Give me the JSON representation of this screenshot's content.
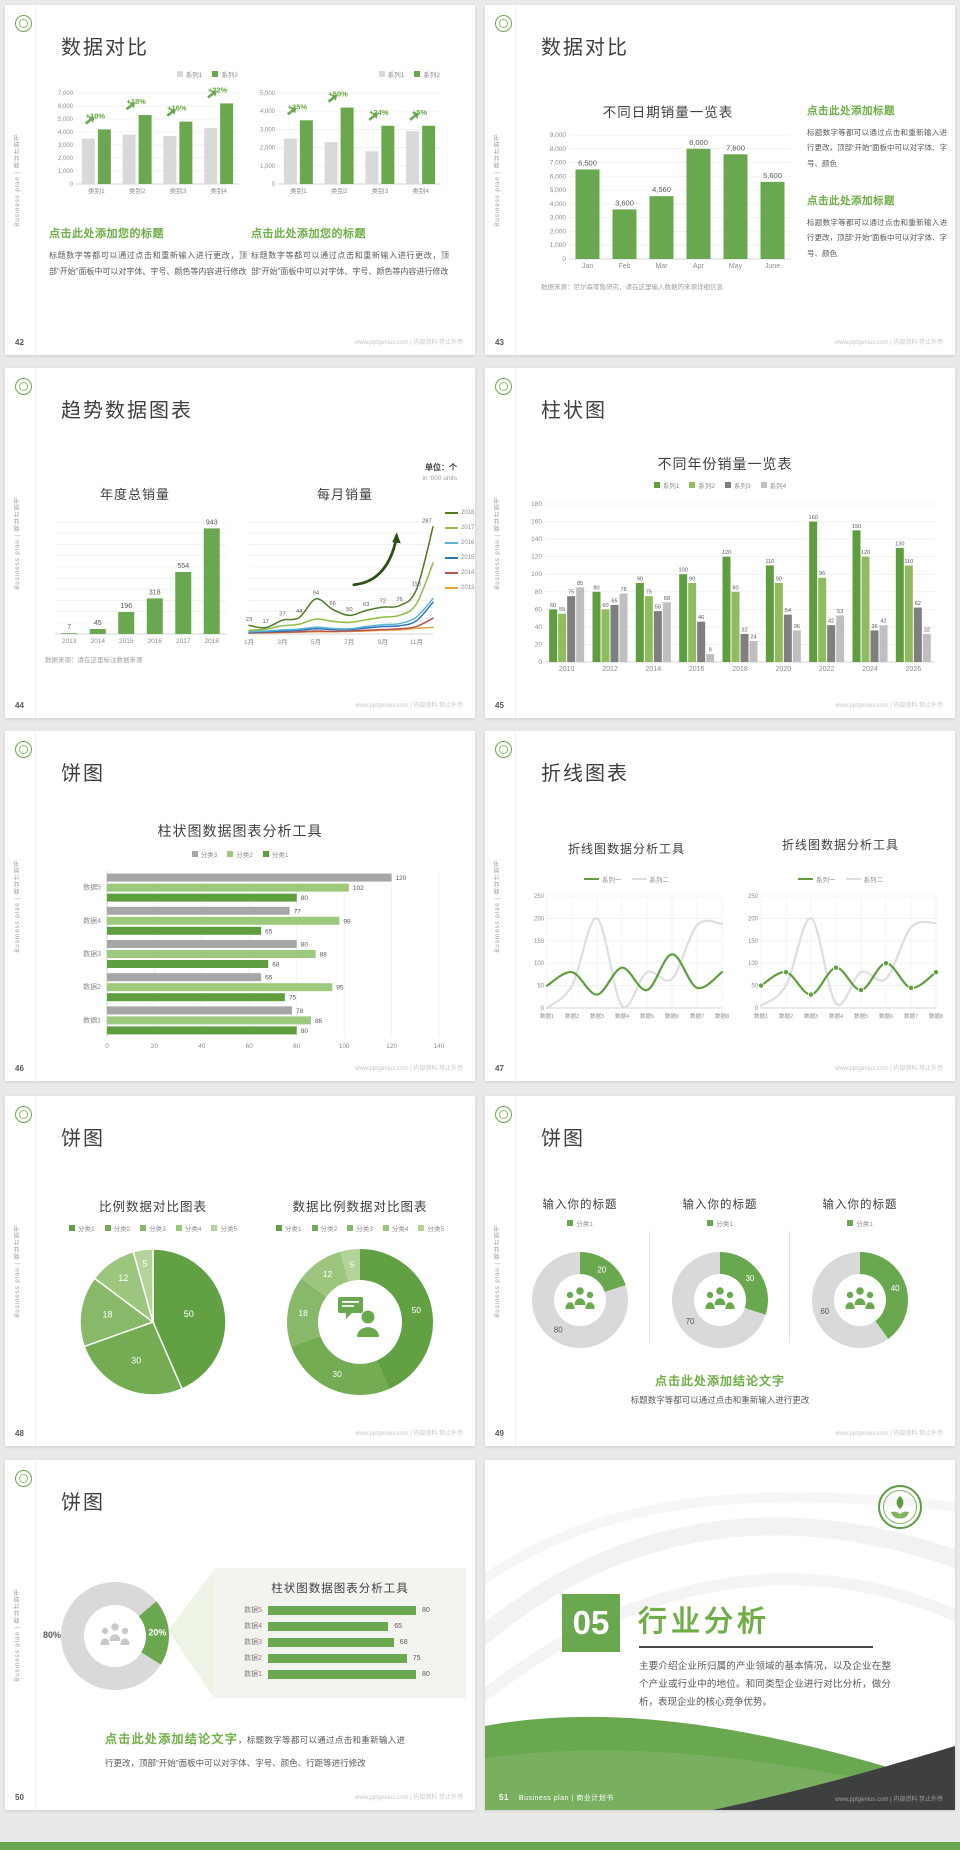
{
  "footer": "www.pptgenius.com | 内部资料 禁止外传",
  "sidebar_text": "Business plan | 商业计划书",
  "theme": {
    "green": "#6aa84f",
    "green_dark": "#4e7a27",
    "green_text": "#6fae47",
    "gray_bar": "#d9d9d9",
    "text_dark": "#3f3f3f",
    "text_body": "#595959"
  },
  "slides": [
    {
      "page": "42",
      "title": "数据对比",
      "charts": [
        {
          "type": "column",
          "ymax": 7000,
          "yticks": [
            "7,000",
            "6,000",
            "5,000",
            "4,000",
            "3,000",
            "2,000",
            "1,000",
            "0"
          ],
          "categories": [
            "类别1",
            "类别2",
            "类别3",
            "类别4"
          ],
          "legend": [
            {
              "label": "系列1",
              "color": "#d9d9d9"
            },
            {
              "label": "系列2",
              "color": "#6aa84f"
            }
          ],
          "series": [
            {
              "name": "系列1",
              "color": "#d9d9d9",
              "values": [
                3500,
                3800,
                3700,
                4300
              ]
            },
            {
              "name": "系列2",
              "color": "#6aa84f",
              "values": [
                4200,
                5300,
                4800,
                6200
              ]
            }
          ],
          "pct": [
            "+10%",
            "+18%",
            "+16%",
            "+22%"
          ]
        },
        {
          "type": "column",
          "ymax": 5000,
          "yticks": [
            "5,000",
            "4,000",
            "3,000",
            "2,000",
            "1,000",
            "0"
          ],
          "categories": [
            "类别1",
            "类别2",
            "类别3",
            "类别4"
          ],
          "legend": [
            {
              "label": "系列1",
              "color": "#d9d9d9"
            },
            {
              "label": "系列2",
              "color": "#6aa84f"
            }
          ],
          "series": [
            {
              "name": "系列1",
              "color": "#d9d9d9",
              "values": [
                2500,
                2300,
                1800,
                2900
              ]
            },
            {
              "name": "系列2",
              "color": "#6aa84f",
              "values": [
                3500,
                4200,
                3200,
                3200
              ]
            }
          ],
          "pct": [
            "+25%",
            "+50%",
            "+34%",
            "+5%"
          ]
        }
      ],
      "blocks": [
        {
          "heading": "点击此处添加您的标题",
          "body": "标题数字等都可以通过点击和重新输入进行更改，顶部“开始”面板中可以对字体、字号、颜色等内容进行修改"
        },
        {
          "heading": "点击此处添加您的标题",
          "body": "标题数字等都可以通过点击和重新输入进行更改，顶部“开始”面板中可以对字体、字号、颜色等内容进行修改"
        }
      ]
    },
    {
      "page": "43",
      "title": "数据对比",
      "chart": {
        "type": "column",
        "title": "不同日期销量一览表",
        "ymax": 9000,
        "yticks": [
          "9,000",
          "8,000",
          "7,000",
          "6,000",
          "5,000",
          "4,000",
          "3,000",
          "2,000",
          "1,000",
          "0"
        ],
        "categories": [
          "Jan",
          "Feb",
          "Mar",
          "Apr",
          "May",
          "June"
        ],
        "series": [
          {
            "name": "销量",
            "color": "#6aa84f",
            "values": [
              6500,
              3600,
              4560,
              8000,
              7600,
              5600
            ]
          }
        ],
        "labels": [
          "6,500",
          "3,600",
          "4,560",
          "8,000",
          "7,600",
          "5,600"
        ]
      },
      "footnote": "数据来源：尼尔森零售研究，请在这里输入数据的来源详细信息",
      "blocks": [
        {
          "heading": "点击此处添加标题",
          "body": "标题数字等都可以通过点击和重新输入进行更改，顶部“开始”面板中可以对字体、字号、颜色"
        },
        {
          "heading": "点击此处添加标题",
          "body": "标题数字等都可以通过点击和重新输入进行更改，顶部“开始”面板中可以对字体、字号、颜色"
        }
      ]
    },
    {
      "page": "44",
      "title": "趋势数据图表",
      "unit_top": "单位：个",
      "unit_sub": "in '000 units",
      "left_chart": {
        "type": "column",
        "title": "年度总销量",
        "ymax": 1000,
        "categories": [
          "2013",
          "2014",
          "2015",
          "2016",
          "2017",
          "2018"
        ],
        "series": [
          {
            "name": "年度总销量",
            "color": "#6aa84f",
            "values": [
              7,
              45,
              196,
              318,
              554,
              943
            ]
          }
        ],
        "labels": [
          "7",
          "45",
          "196",
          "318",
          "554",
          "943"
        ]
      },
      "right_chart": {
        "type": "line",
        "title": "每月销量",
        "ymax": 300,
        "x_labels": [
          "1月",
          "3月",
          "5月",
          "7月",
          "9月",
          "11月"
        ],
        "point_labels": [
          "23",
          "17",
          "37",
          "44",
          "94",
          "66",
          "50",
          "63",
          "72",
          "76",
          "118",
          "287"
        ],
        "series": [
          {
            "name": "2018",
            "color": "#4e7a27",
            "values": [
              23,
              17,
              37,
              44,
              94,
              66,
              50,
              63,
              72,
              76,
              118,
              287
            ]
          },
          {
            "name": "2017",
            "color": "#8fbc45",
            "values": [
              10,
              13,
              22,
              26,
              40,
              34,
              31,
              38,
              45,
              50,
              80,
              190
            ]
          },
          {
            "name": "2016",
            "color": "#5ab4d6",
            "values": [
              6,
              8,
              11,
              13,
              18,
              15,
              14,
              20,
              25,
              28,
              45,
              95
            ]
          },
          {
            "name": "2015",
            "color": "#2e75b6",
            "values": [
              4,
              6,
              8,
              10,
              14,
              12,
              12,
              16,
              20,
              22,
              35,
              85
            ]
          },
          {
            "name": "2014",
            "color": "#b85450",
            "values": [
              3,
              4,
              5,
              6,
              8,
              7,
              8,
              10,
              12,
              14,
              20,
              42
            ]
          },
          {
            "name": "2013",
            "color": "#e8a33d",
            "values": [
              2,
              3,
              4,
              5,
              6,
              6,
              7,
              8,
              10,
              11,
              15,
              18
            ]
          }
        ]
      },
      "footnote": "数据来源：请在这里标注数据来源"
    },
    {
      "page": "45",
      "title": "柱状图",
      "chart": {
        "type": "grouped-column",
        "title": "不同年份销量一览表",
        "ymax": 180,
        "yticks": [
          "180",
          "160",
          "140",
          "120",
          "100",
          "80",
          "60",
          "40",
          "20",
          "0"
        ],
        "legend": [
          {
            "label": "系列1",
            "color": "#5f9e3e"
          },
          {
            "label": "系列2",
            "color": "#8fbc5f"
          },
          {
            "label": "系列3",
            "color": "#7f7f7f"
          },
          {
            "label": "系列4",
            "color": "#bfbfbf"
          }
        ],
        "categories": [
          "2010",
          "2012",
          "2014",
          "2016",
          "2018",
          "2020",
          "2022",
          "2024",
          "2026"
        ],
        "series": [
          {
            "name": "系列1",
            "color": "#5f9e3e",
            "values": [
              60,
              80,
              90,
              100,
              120,
              110,
              160,
              150,
              130
            ]
          },
          {
            "name": "系列2",
            "color": "#8fbc5f",
            "values": [
              55,
              60,
              75,
              90,
              80,
              90,
              96,
              120,
              110
            ]
          },
          {
            "name": "系列3",
            "color": "#7f7f7f",
            "values": [
              75,
              65,
              58,
              46,
              32,
              54,
              42,
              36,
              62
            ]
          },
          {
            "name": "系列4",
            "color": "#bfbfbf",
            "values": [
              85,
              78,
              68,
              9,
              24,
              36,
              53,
              42,
              32
            ]
          }
        ]
      }
    },
    {
      "page": "46",
      "title": "饼图",
      "chart": {
        "type": "bar-h",
        "title": "柱状图数据图表分析工具",
        "xmax": 140,
        "xticks": [
          "0",
          "20",
          "40",
          "60",
          "80",
          "100",
          "120",
          "140"
        ],
        "legend": [
          {
            "label": "分类3",
            "color": "#a6a6a6"
          },
          {
            "label": "分类2",
            "color": "#9dc97d"
          },
          {
            "label": "分类1",
            "color": "#5f9e3e"
          }
        ],
        "categories": [
          "数据5",
          "数据4",
          "数据3",
          "数据2",
          "数据1"
        ],
        "series": [
          {
            "name": "分类3",
            "color": "#a6a6a6",
            "values": [
              120,
              77,
              80,
              65,
              78
            ]
          },
          {
            "name": "分类2",
            "color": "#9dc97d",
            "values": [
              102,
              98,
              88,
              95,
              86
            ]
          },
          {
            "name": "分类1",
            "color": "#5f9e3e",
            "values": [
              80,
              65,
              68,
              75,
              80
            ]
          }
        ]
      }
    },
    {
      "page": "47",
      "title": "折线图表",
      "charts": [
        {
          "type": "line",
          "title": "折线图数据分析工具",
          "ymax": 250,
          "yticks": [
            "250",
            "200",
            "150",
            "100",
            "50",
            "0"
          ],
          "x_labels": [
            "数据1",
            "数据2",
            "数据3",
            "数据4",
            "数据5",
            "数据6",
            "数据7",
            "数据8"
          ],
          "legend": [
            {
              "label": "系列一",
              "color": "#5f9e3e"
            },
            {
              "label": "系列二",
              "color": "#dedede"
            }
          ],
          "series": [
            {
              "name": "系列一",
              "color": "#5f9e3e",
              "values": [
                50,
                80,
                30,
                90,
                40,
                120,
                45,
                80
              ]
            },
            {
              "name": "系列二",
              "color": "#dedede",
              "values": [
                0,
                50,
                200,
                5,
                80,
                65,
                185,
                188
              ]
            }
          ]
        },
        {
          "type": "line",
          "title": "折线图数据分析工具",
          "ymax": 250,
          "yticks": [
            "250",
            "200",
            "150",
            "100",
            "50",
            "0"
          ],
          "x_labels": [
            "数据1",
            "数据2",
            "数据3",
            "数据4",
            "数据5",
            "数据6",
            "数据7",
            "数据8"
          ],
          "legend": [
            {
              "label": "系列一",
              "color": "#5f9e3e"
            },
            {
              "label": "系列二",
              "color": "#dedede"
            }
          ],
          "series": [
            {
              "name": "系列一",
              "color": "#5f9e3e",
              "values": [
                50,
                80,
                30,
                90,
                40,
                100,
                45,
                80
              ]
            },
            {
              "name": "系列二",
              "color": "#dedede",
              "values": [
                5,
                50,
                200,
                10,
                80,
                65,
                180,
                190
              ]
            }
          ]
        }
      ]
    },
    {
      "page": "48",
      "title": "饼图",
      "charts": [
        {
          "type": "pie",
          "title": "比例数据对比图表",
          "legend": [
            {
              "label": "分类1",
              "color": "#61a144"
            },
            {
              "label": "分类2",
              "color": "#74ac53"
            },
            {
              "label": "分类3",
              "color": "#87b968"
            },
            {
              "label": "分类4",
              "color": "#9cc67e"
            },
            {
              "label": "分类5",
              "color": "#b3d498"
            }
          ],
          "values": [
            50,
            30,
            18,
            12,
            5
          ],
          "labels": [
            "50",
            "30",
            "18",
            "12",
            "5"
          ],
          "colors": [
            "#61a144",
            "#74ac53",
            "#87b968",
            "#9cc67e",
            "#b3d498"
          ]
        },
        {
          "type": "donut",
          "title": "数据比例数据对比图表",
          "legend": [
            {
              "label": "分类1",
              "color": "#61a144"
            },
            {
              "label": "分类2",
              "color": "#74ac53"
            },
            {
              "label": "分类3",
              "color": "#87b968"
            },
            {
              "label": "分类4",
              "color": "#9cc67e"
            },
            {
              "label": "分类5",
              "color": "#b3d498"
            }
          ],
          "values": [
            50,
            30,
            18,
            12,
            5
          ],
          "labels": [
            "50",
            "30",
            "18",
            "12",
            "5"
          ],
          "colors": [
            "#61a144",
            "#74ac53",
            "#87b968",
            "#9cc67e",
            "#b3d498"
          ]
        }
      ]
    },
    {
      "page": "49",
      "title": "饼图",
      "donuts": [
        {
          "title": "输入你的标题",
          "legend": [
            {
              "label": "分类1",
              "color": "#6aa84f"
            }
          ],
          "values": [
            20,
            80
          ],
          "labels": [
            "20",
            "80"
          ],
          "colors": [
            "#6aa84f",
            "#d9d9d9"
          ]
        },
        {
          "title": "输入你的标题",
          "legend": [
            {
              "label": "分类1",
              "color": "#6aa84f"
            }
          ],
          "values": [
            30,
            70
          ],
          "labels": [
            "30",
            "70"
          ],
          "colors": [
            "#6aa84f",
            "#d9d9d9"
          ]
        },
        {
          "title": "输入你的标题",
          "legend": [
            {
              "label": "分类1",
              "color": "#6aa84f"
            }
          ],
          "values": [
            40,
            60
          ],
          "labels": [
            "40",
            "60"
          ],
          "colors": [
            "#6aa84f",
            "#d9d9d9"
          ]
        }
      ],
      "conclusion": "点击此处添加结论文字",
      "conclusion_sub": "标题数字等都可以通过点击和重新输入进行更改"
    },
    {
      "page": "50",
      "title": "饼图",
      "donut": {
        "type": "donut",
        "values": [
          20,
          80
        ],
        "labels": [
          "20%",
          ""
        ],
        "colors": [
          "#6aa84f",
          "#d9d9d9"
        ],
        "gray_label": "80%"
      },
      "panel": {
        "title": "柱状图数据图表分析工具",
        "categories": [
          "数据5",
          "数据4",
          "数据3",
          "数据2",
          "数据1"
        ],
        "values": [
          80,
          65,
          68,
          75,
          80
        ]
      },
      "conclusion": "点击此处添加结论文字",
      "conclusion_rest": "，标题数字等都可以通过点击和重新输入进行更改，顶部“开始”面板中可以对字体、字号、颜色、行距等进行修改"
    },
    {
      "page": "51",
      "number": "05",
      "title": "行业分析",
      "body": "主要介绍企业所归属的产业领域的基本情况，以及企业在整个产业或行业中的地位。和同类型企业进行对比分析，做分析，表现企业的核心竞争优势。",
      "footer_text": "Business plan | 商业计划书"
    }
  ]
}
